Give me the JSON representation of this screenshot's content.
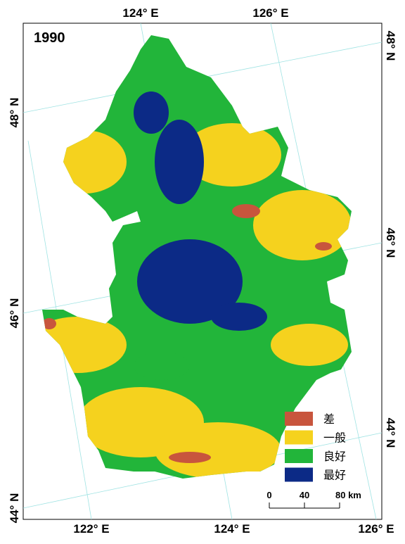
{
  "title": "1990",
  "legend": [
    {
      "label": "差",
      "color": "#c8553d"
    },
    {
      "label": "一般",
      "color": "#f5d21e"
    },
    {
      "label": "良好",
      "color": "#22b53a"
    },
    {
      "label": "最好",
      "color": "#0c2a86"
    }
  ],
  "scale_bar": [
    "0",
    "40",
    "80 km"
  ],
  "top_labels": [
    "124° E",
    "126° E"
  ],
  "bottom_labels": [
    "122° E",
    "124° E",
    "126° E"
  ],
  "left_labels": [
    "48° N",
    "46° N",
    "44° N"
  ],
  "right_labels": [
    "48° N",
    "46° N",
    "44° N"
  ]
}
